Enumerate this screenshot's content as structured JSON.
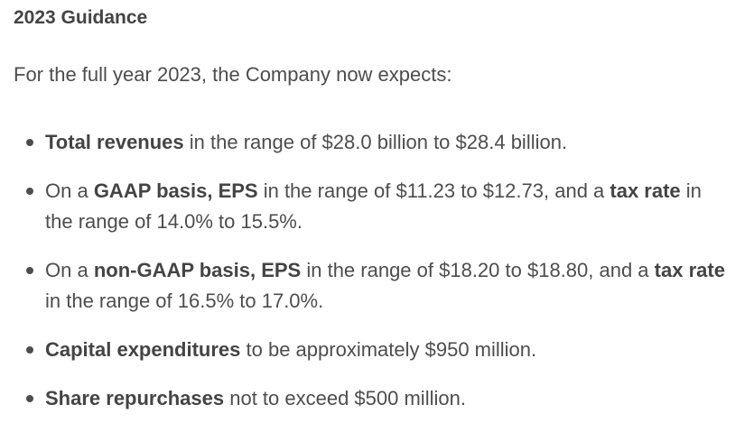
{
  "document": {
    "heading": "2023 Guidance",
    "intro": "For the full year 2023, the Company now expects:",
    "items": [
      {
        "b1": "Total revenues",
        "t1": " in the range of $28.0 billion to $28.4 billion."
      },
      {
        "t0": "On a ",
        "b1": "GAAP basis, EPS",
        "t1": " in the range of $11.23 to $12.73, and a ",
        "b2": "tax rate",
        "t2": " in the range of 14.0% to 15.5%."
      },
      {
        "t0": "On a ",
        "b1": "non-GAAP basis, EPS",
        "t1": " in the range of $18.20 to $18.80, and a ",
        "b2": "tax rate",
        "t2": " in the range of 16.5% to 17.0%."
      },
      {
        "b1": "Capital expenditures",
        "t1": " to be approximately $950 million."
      },
      {
        "b1": "Share repurchases",
        "t1": " not to exceed $500 million."
      }
    ]
  }
}
